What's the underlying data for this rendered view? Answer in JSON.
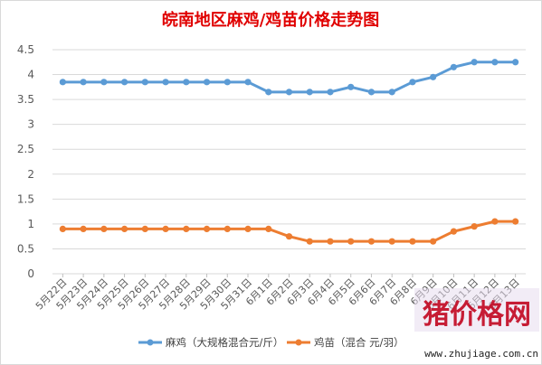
{
  "chart_data": {
    "type": "line",
    "title": "皖南地区麻鸡/鸡苗价格走势图",
    "categories": [
      "5月22日",
      "5月23日",
      "5月24日",
      "5月25日",
      "5月26日",
      "5月27日",
      "5月28日",
      "5月29日",
      "5月30日",
      "5月31日",
      "6月1日",
      "6月2日",
      "6月3日",
      "6月4日",
      "6月5日",
      "6月6日",
      "6月7日",
      "6月8日",
      "6月9日",
      "6月10日",
      "6月11日",
      "6月12日",
      "6月13日"
    ],
    "ylim": [
      0,
      4.5
    ],
    "yticks": [
      "0",
      "0.5",
      "1",
      "1.5",
      "2",
      "2.5",
      "3",
      "3.5",
      "4",
      "4.5"
    ],
    "grid": true,
    "legend_position": "bottom",
    "series": [
      {
        "name": "麻鸡（大规格混合元/斤）",
        "color": "#5b9bd5",
        "values": [
          3.85,
          3.85,
          3.85,
          3.85,
          3.85,
          3.85,
          3.85,
          3.85,
          3.85,
          3.85,
          3.65,
          3.65,
          3.65,
          3.65,
          3.75,
          3.65,
          3.65,
          3.85,
          3.95,
          4.15,
          4.25,
          4.25,
          4.25
        ]
      },
      {
        "name": "鸡苗（混合 元/羽）",
        "color": "#ed7d31",
        "values": [
          0.9,
          0.9,
          0.9,
          0.9,
          0.9,
          0.9,
          0.9,
          0.9,
          0.9,
          0.9,
          0.9,
          0.75,
          0.65,
          0.65,
          0.65,
          0.65,
          0.65,
          0.65,
          0.65,
          0.85,
          0.95,
          1.05,
          1.05
        ]
      }
    ]
  },
  "watermark": {
    "text": "猪价格网",
    "url": "www.zhujiage.com.cn",
    "color": "#c0001a"
  }
}
